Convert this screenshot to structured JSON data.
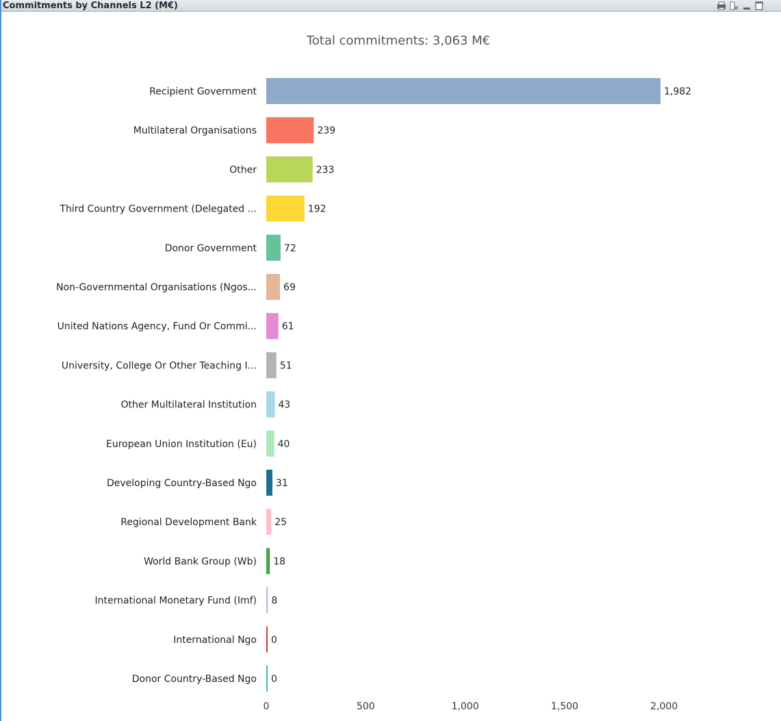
{
  "window": {
    "title": "Commitments by Channels L2 (M€)",
    "border_color": "#4a90d9"
  },
  "toolbar": {
    "icons": [
      "print-icon",
      "clear-selections-icon",
      "minimize-icon",
      "maximize-icon"
    ]
  },
  "chart_data": {
    "type": "bar",
    "orientation": "horizontal",
    "title": "Total commitments: 3,063 M€",
    "xlim": [
      0,
      2000
    ],
    "xticks": [
      0,
      500,
      1000,
      1500,
      2000
    ],
    "xtick_labels": [
      "0",
      "500",
      "1,000",
      "1,500",
      "2,000"
    ],
    "grid": false,
    "categories": [
      "Recipient Government",
      "Multilateral Organisations",
      "Other",
      "Third Country Government (Delegated ...",
      "Donor Government",
      "Non-Governmental Organisations (Ngos...",
      "United Nations Agency, Fund Or Commi...",
      "University, College Or Other Teaching I...",
      "Other Multilateral Institution",
      "European Union Institution (Eu)",
      "Developing Country-Based Ngo",
      "Regional Development Bank",
      "World Bank Group (Wb)",
      "International Monetary Fund (Imf)",
      "International Ngo",
      "Donor Country-Based Ngo"
    ],
    "values": [
      1982,
      239,
      233,
      192,
      72,
      69,
      61,
      51,
      43,
      40,
      31,
      25,
      18,
      8,
      0,
      0
    ],
    "value_labels": [
      "1,982",
      "239",
      "233",
      "192",
      "72",
      "69",
      "61",
      "51",
      "43",
      "40",
      "31",
      "25",
      "18",
      "8",
      "0",
      "0"
    ],
    "colors": [
      "#8eaacb",
      "#fb7563",
      "#b8d657",
      "#fdd835",
      "#66c29a",
      "#e3b797",
      "#e58bd6",
      "#b3b3b3",
      "#a7d6e6",
      "#abe8bd",
      "#1e6f8f",
      "#fcc0ca",
      "#4aa345",
      "#c9b1dd",
      "#d23a3a",
      "#3cbbb1"
    ]
  }
}
